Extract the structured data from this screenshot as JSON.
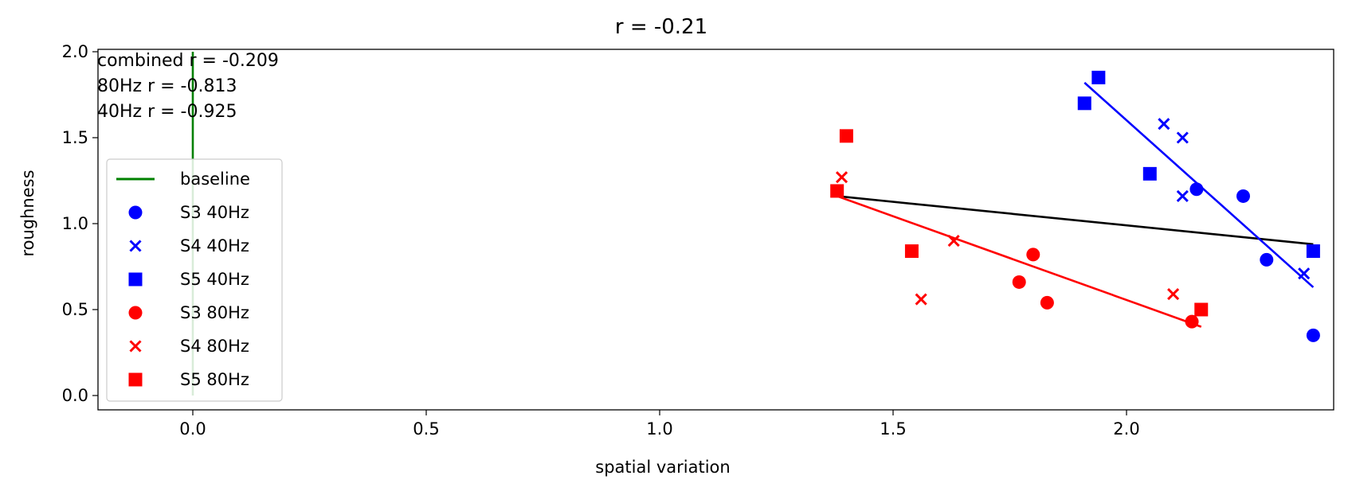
{
  "chart_data": {
    "type": "scatter",
    "title": "r = -0.21",
    "xlabel": "spatial variation",
    "ylabel": "roughness",
    "xlim": [
      -0.2,
      2.45
    ],
    "ylim": [
      -0.1,
      2.0
    ],
    "xticks": [
      "0.0",
      "0.5",
      "1.0",
      "1.5",
      "2.0"
    ],
    "yticks": [
      "0.0",
      "0.5",
      "1.0",
      "1.5",
      "2.0"
    ],
    "annotations": [
      "combined r = -0.209",
      "80Hz r = -0.813",
      "40Hz r = -0.925"
    ],
    "legend_position": "lower-left",
    "series": [
      {
        "name": "S3 40Hz",
        "marker": "circle",
        "color": "#0000ff",
        "points": [
          [
            2.15,
            1.2
          ],
          [
            2.25,
            1.16
          ],
          [
            2.3,
            0.79
          ],
          [
            2.4,
            0.35
          ]
        ]
      },
      {
        "name": "S4 40Hz",
        "marker": "x",
        "color": "#0000ff",
        "points": [
          [
            2.08,
            1.58
          ],
          [
            2.12,
            1.5
          ],
          [
            2.12,
            1.16
          ],
          [
            2.38,
            0.71
          ]
        ]
      },
      {
        "name": "S5 40Hz",
        "marker": "square",
        "color": "#0000ff",
        "points": [
          [
            1.91,
            1.7
          ],
          [
            1.94,
            1.85
          ],
          [
            2.05,
            1.29
          ],
          [
            2.4,
            0.84
          ]
        ]
      },
      {
        "name": "S3 80Hz",
        "marker": "circle",
        "color": "#ff0000",
        "points": [
          [
            1.77,
            0.66
          ],
          [
            1.8,
            0.82
          ],
          [
            1.83,
            0.54
          ],
          [
            2.14,
            0.43
          ]
        ]
      },
      {
        "name": "S4 80Hz",
        "marker": "x",
        "color": "#ff0000",
        "points": [
          [
            1.39,
            1.27
          ],
          [
            1.56,
            0.56
          ],
          [
            1.63,
            0.9
          ],
          [
            2.1,
            0.59
          ]
        ]
      },
      {
        "name": "S5 80Hz",
        "marker": "square",
        "color": "#ff0000",
        "points": [
          [
            1.38,
            1.19
          ],
          [
            1.4,
            1.51
          ],
          [
            1.54,
            0.84
          ],
          [
            2.16,
            0.5
          ]
        ]
      }
    ],
    "lines": [
      {
        "name": "baseline",
        "color": "#008000",
        "x": [
          0.0,
          0.0
        ],
        "y": [
          0.0,
          2.0
        ]
      },
      {
        "name": "",
        "color": "#000000",
        "x": [
          1.38,
          2.4
        ],
        "y": [
          1.16,
          0.88
        ]
      },
      {
        "name": "",
        "color": "#ff0000",
        "x": [
          1.38,
          2.16
        ],
        "y": [
          1.16,
          0.4
        ]
      },
      {
        "name": "",
        "color": "#0000ff",
        "x": [
          1.91,
          2.4
        ],
        "y": [
          1.82,
          0.63
        ]
      }
    ]
  }
}
